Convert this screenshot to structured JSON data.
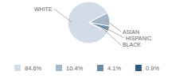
{
  "chart_data": {
    "type": "pie",
    "categories": [
      "WHITE",
      "ASIAN",
      "HISPANIC",
      "BLACK"
    ],
    "values": [
      84.6,
      10.4,
      4.1,
      0.9
    ],
    "value_labels": [
      "84.6%",
      "10.4%",
      "4.1%",
      "0.9%"
    ],
    "colors": [
      "#d3dce6",
      "#a4b6c7",
      "#6e8ba5",
      "#2d5a80"
    ],
    "legend": "bottom"
  }
}
